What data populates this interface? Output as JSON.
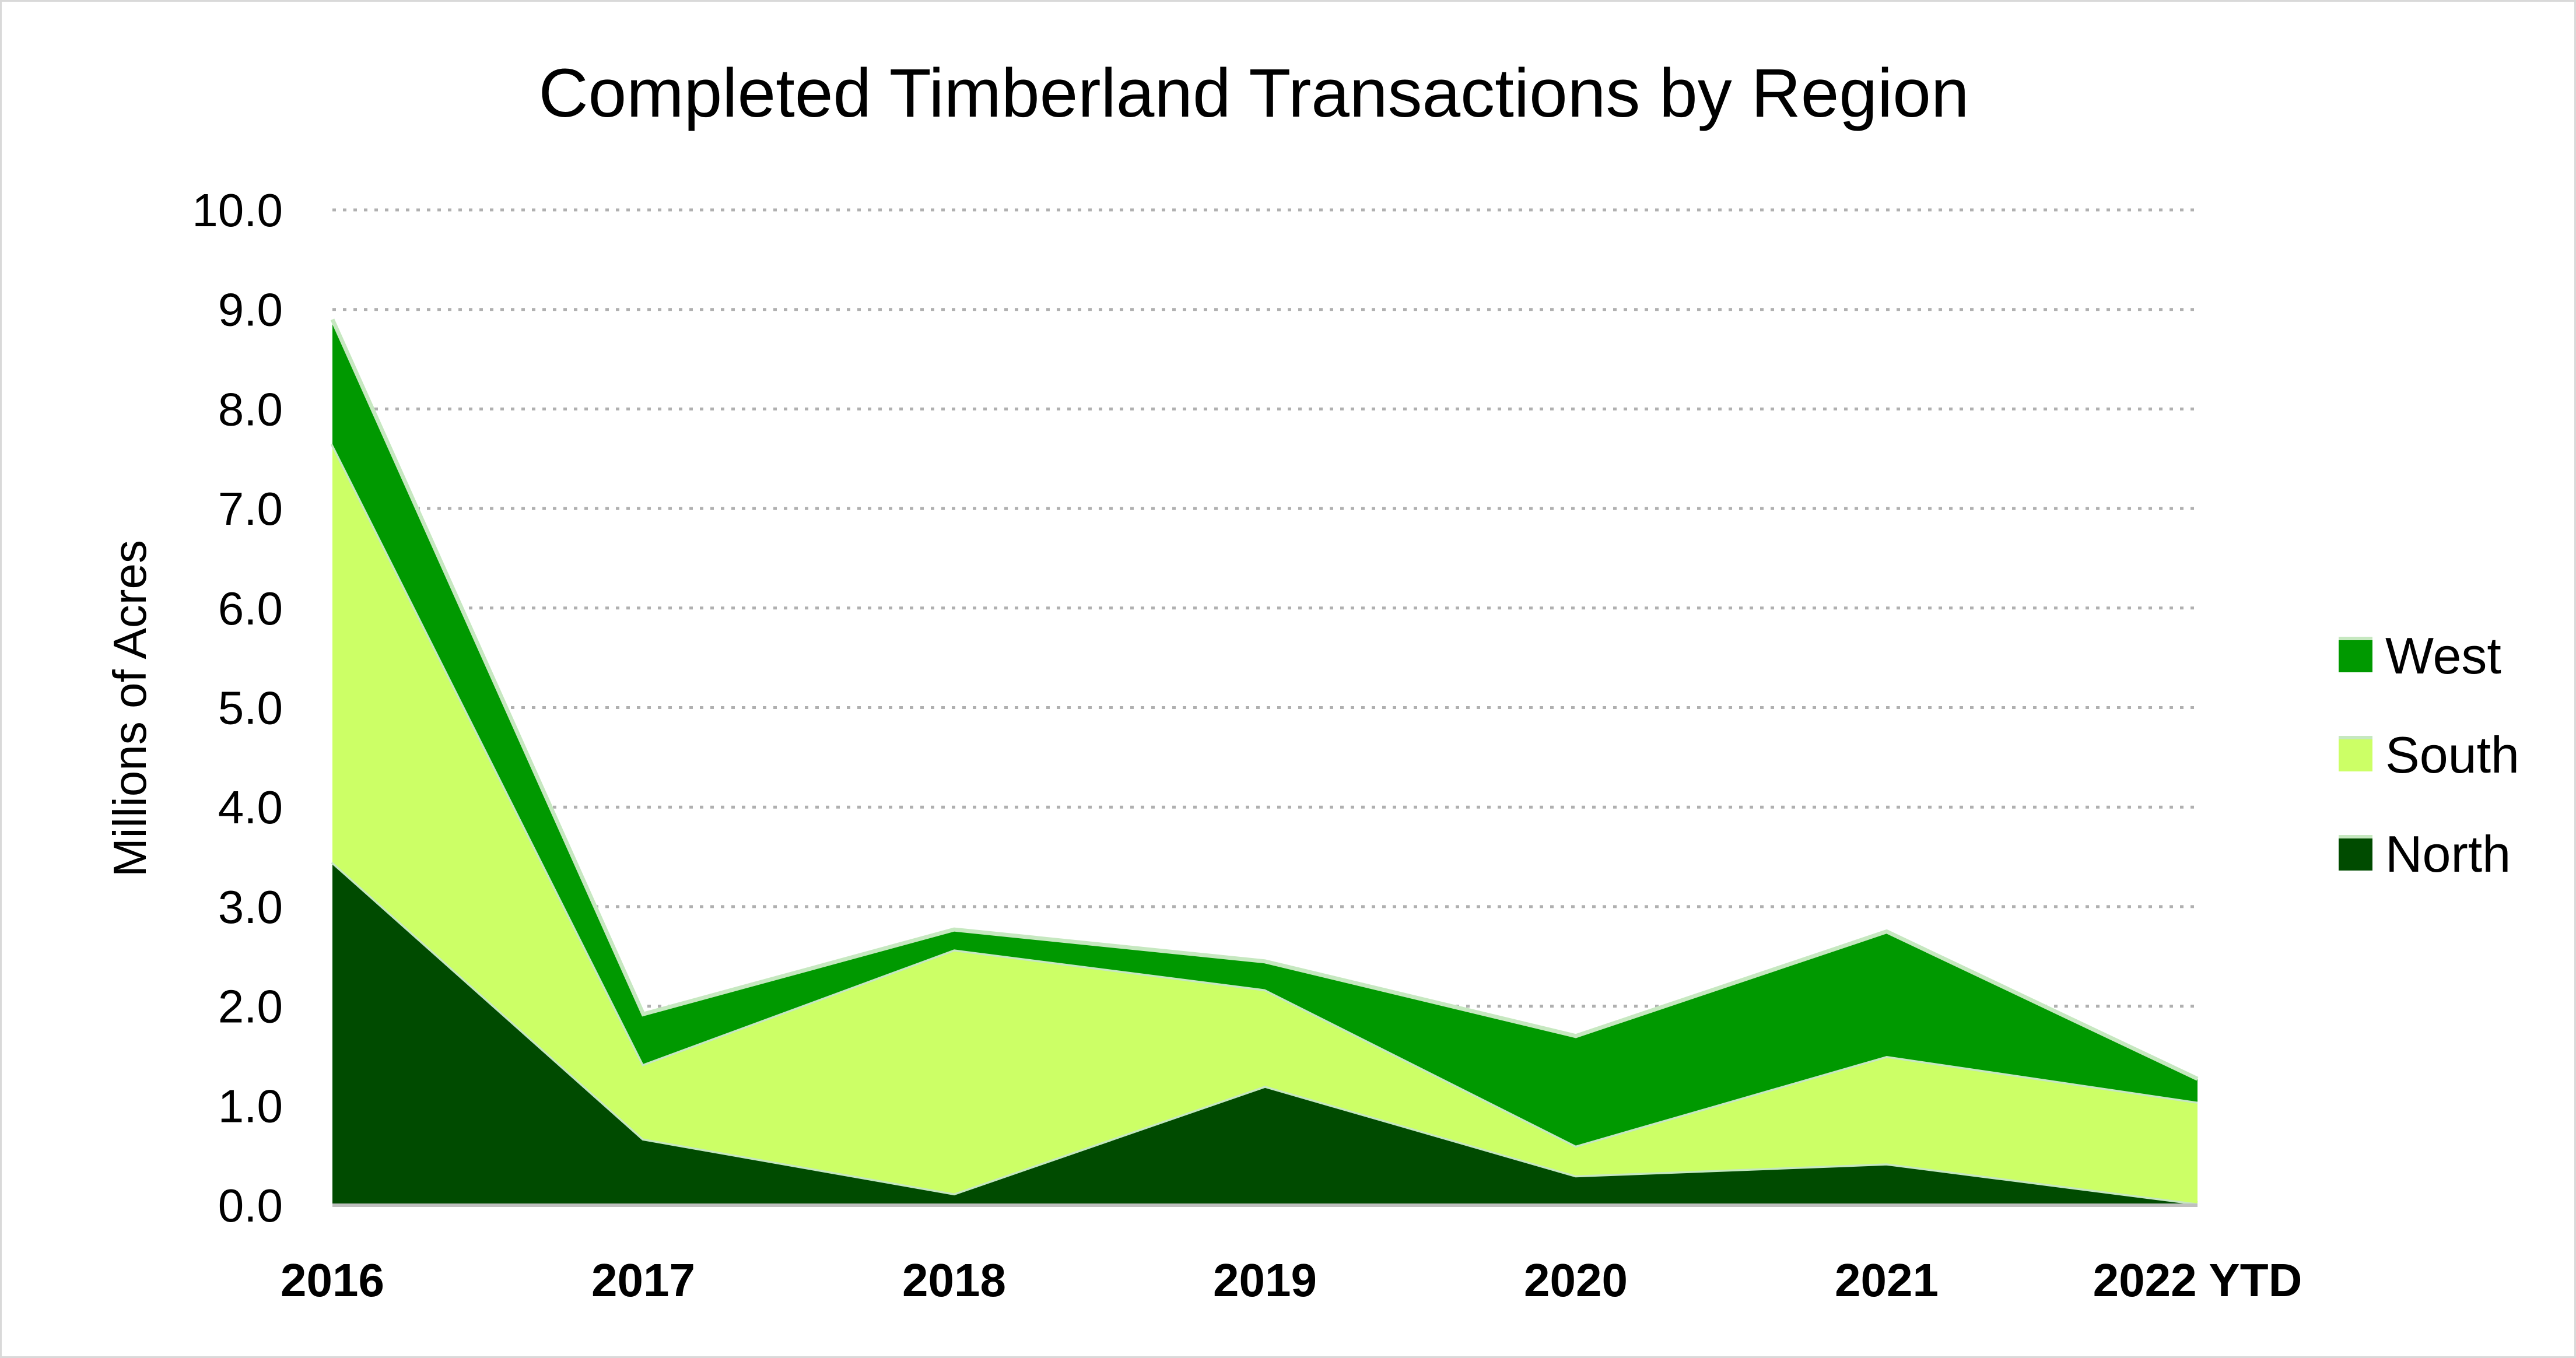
{
  "chart_data": {
    "type": "area",
    "stacked": true,
    "title": "Completed Timberland Transactions by Region",
    "xlabel": "",
    "ylabel": "Millions of Acres",
    "categories": [
      "2016",
      "2017",
      "2018",
      "2019",
      "2020",
      "2021",
      "2022 YTD"
    ],
    "y_ticks": [
      "0.0",
      "1.0",
      "2.0",
      "3.0",
      "4.0",
      "5.0",
      "6.0",
      "7.0",
      "8.0",
      "9.0",
      "10.0"
    ],
    "ylim": [
      0,
      10
    ],
    "grid": true,
    "legend_position": "right",
    "series": [
      {
        "name": "North",
        "color": "#004b00",
        "values": [
          3.45,
          0.67,
          0.12,
          1.2,
          0.3,
          0.42,
          0.02
        ]
      },
      {
        "name": "South",
        "color": "#ccff66",
        "values": [
          4.2,
          0.75,
          2.45,
          0.97,
          0.3,
          1.08,
          1.02
        ]
      },
      {
        "name": "West",
        "color": "#009900",
        "values": [
          1.25,
          0.5,
          0.2,
          0.28,
          1.1,
          1.25,
          0.23
        ]
      }
    ]
  }
}
